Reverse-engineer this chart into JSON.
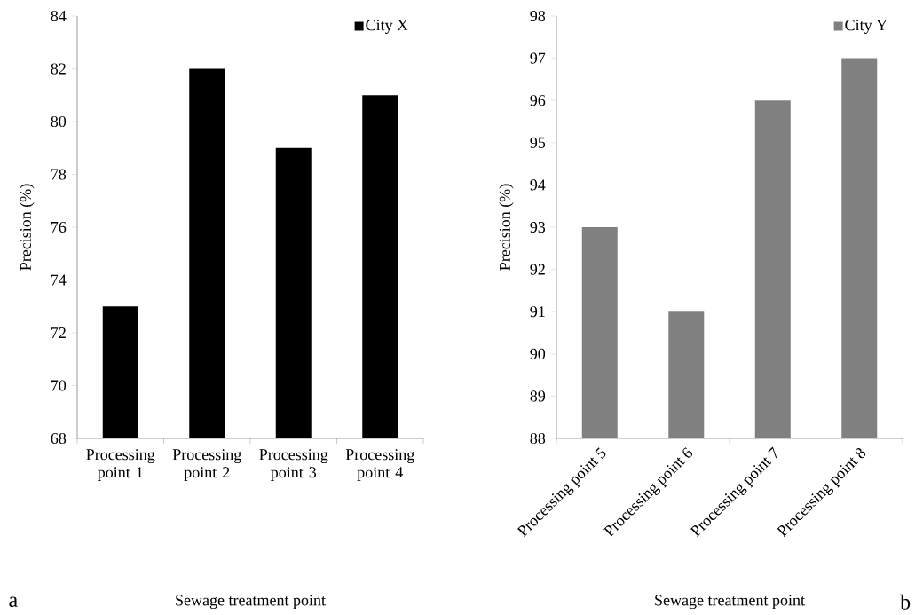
{
  "chart_data": [
    {
      "type": "bar",
      "xlabel": "Sewage treatment point",
      "ylabel": "Precision (%)",
      "categories": [
        "Processing point 1",
        "Processing point 2",
        "Processing point 3",
        "Processing point 4"
      ],
      "series": [
        {
          "name": "City X",
          "color": "#000000",
          "values": [
            73,
            82,
            79,
            81
          ]
        }
      ],
      "ylim": [
        68,
        84
      ],
      "yticks": [
        68,
        70,
        72,
        74,
        76,
        78,
        80,
        82,
        84
      ],
      "legend": "top right",
      "annotations": [
        "a"
      ]
    },
    {
      "type": "bar",
      "xlabel": "Sewage treatment point",
      "ylabel": "Precision (%)",
      "categories": [
        "Processing point 5",
        "Processing point 6",
        "Processing point 7",
        "Processing point 8"
      ],
      "series": [
        {
          "name": "City Y",
          "color": "#808080",
          "values": [
            93,
            91,
            96,
            97
          ]
        }
      ],
      "ylim": [
        88,
        98
      ],
      "yticks": [
        88,
        89,
        90,
        91,
        92,
        93,
        94,
        95,
        96,
        97,
        98
      ],
      "legend": "top right",
      "annotations": [
        "b"
      ]
    }
  ]
}
